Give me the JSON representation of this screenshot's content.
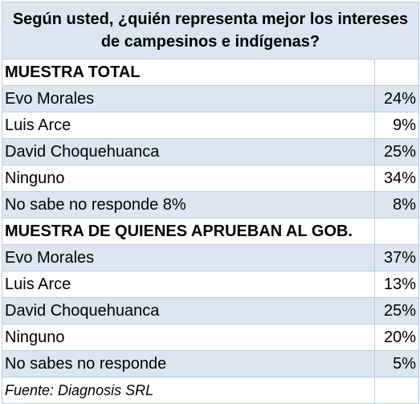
{
  "title": "Según usted, ¿quién representa mejor los intereses de campesinos e indígenas?",
  "sections": [
    {
      "heading": "MUESTRA TOTAL",
      "rows": [
        {
          "label": "Evo Morales",
          "value": "24%"
        },
        {
          "label": "Luis Arce",
          "value": "9%"
        },
        {
          "label": "David Choquehuanca",
          "value": "25%"
        },
        {
          "label": "Ninguno",
          "value": "34%"
        },
        {
          "label": "No sabe no responde 8%",
          "value": "8%"
        }
      ]
    },
    {
      "heading": "MUESTRA DE QUIENES APRUEBAN AL GOB.",
      "rows": [
        {
          "label": "Evo Morales",
          "value": "37%"
        },
        {
          "label": "Luis Arce",
          "value": "13%"
        },
        {
          "label": "David Choquehuanca",
          "value": "25%"
        },
        {
          "label": "Ninguno",
          "value": "20%"
        },
        {
          "label": "No sabes no responde",
          "value": "5%"
        }
      ]
    }
  ],
  "source": "Fuente: Diagnosis SRL",
  "colors": {
    "stripe": "#dce6f1",
    "border": "#b7cde3"
  }
}
